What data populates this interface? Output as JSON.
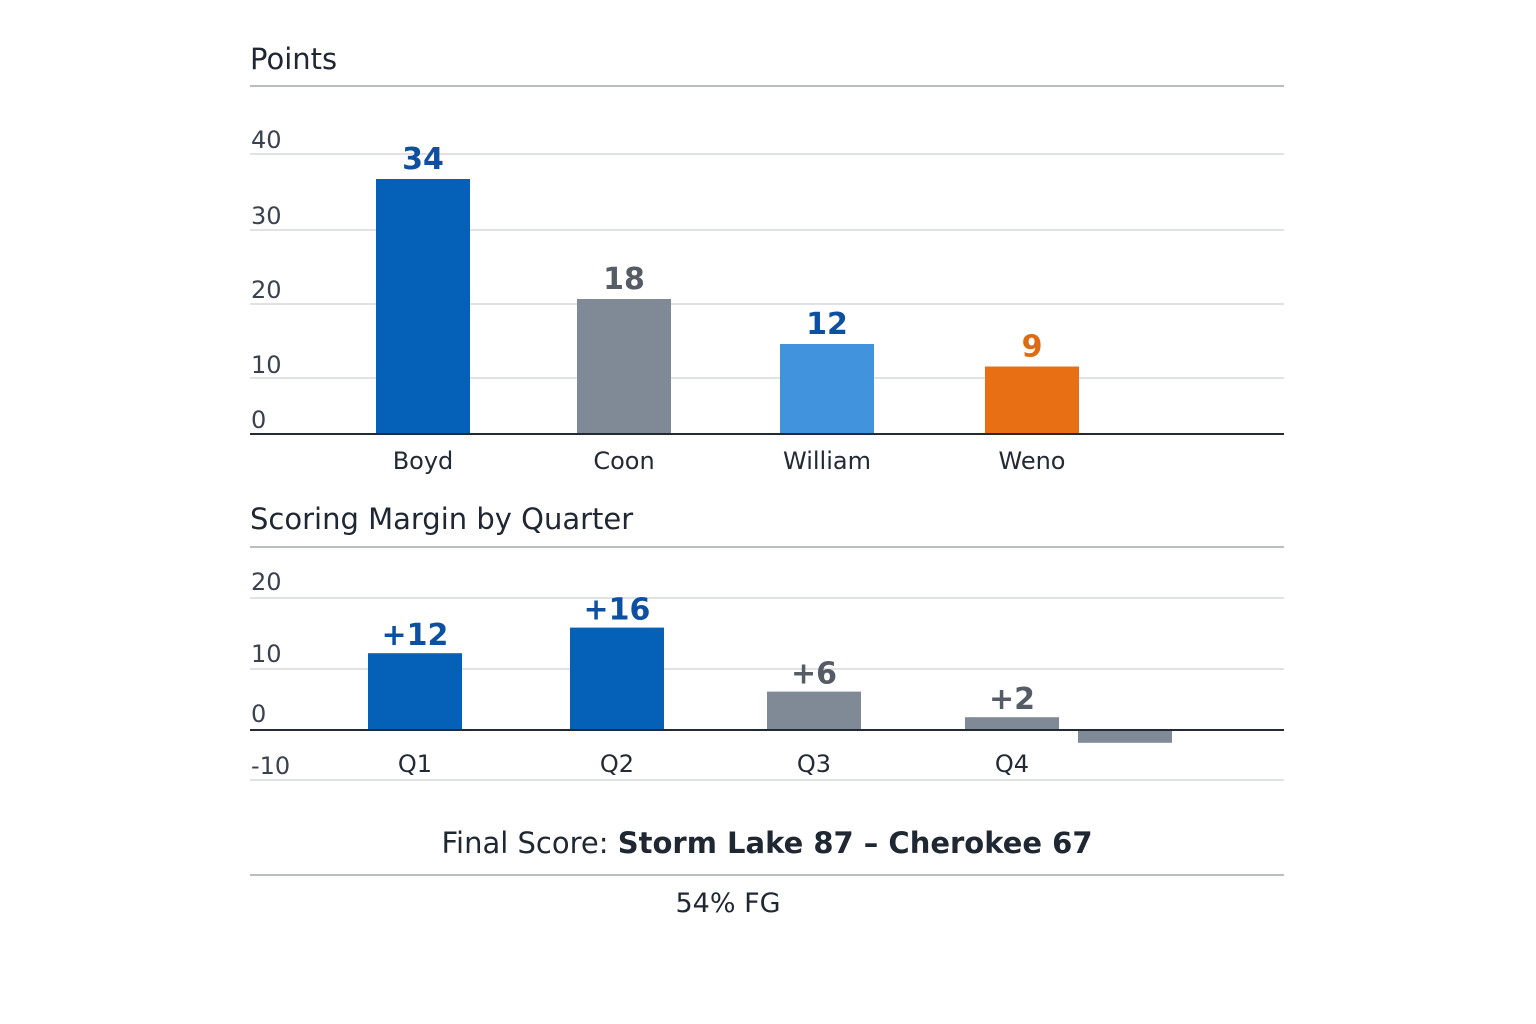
{
  "colors": {
    "blue": "#0560b8",
    "gray": "#808a96",
    "light_blue": "#4193de",
    "orange": "#e86f13",
    "blue_text": "#0d4fa0",
    "gray_text": "#555c66",
    "orange_text": "#e06a10"
  },
  "chart_data": [
    {
      "type": "bar",
      "title": "Points",
      "categories": [
        "Boyd",
        "Coon",
        "William",
        "Weno"
      ],
      "values": [
        34,
        18,
        12,
        9
      ],
      "data_labels": [
        "34",
        "18",
        "12",
        "9"
      ],
      "bar_colors": [
        "blue",
        "gray",
        "light_blue",
        "orange"
      ],
      "label_colors": [
        "blue_text",
        "gray_text",
        "blue_text",
        "orange_text"
      ],
      "yticks": [
        0,
        10,
        20,
        30,
        40
      ],
      "ytick_labels": [
        "0",
        "10",
        "20",
        "30",
        "40"
      ],
      "xlabel": "",
      "ylabel": "",
      "grid": true
    },
    {
      "type": "bar",
      "title": "Scoring Margin by Quarter",
      "categories": [
        "Q1",
        "Q2",
        "Q3",
        "Q4",
        ""
      ],
      "values": [
        12,
        16,
        6,
        2,
        -2
      ],
      "data_labels": [
        "+12",
        "+16",
        "+6",
        "+2",
        ""
      ],
      "bar_colors": [
        "blue",
        "blue",
        "gray",
        "gray",
        "gray"
      ],
      "label_colors": [
        "blue_text",
        "blue_text",
        "gray_text",
        "gray_text",
        "gray_text"
      ],
      "yticks": [
        -10,
        0,
        10,
        20
      ],
      "ytick_labels": [
        "-10",
        "0",
        "10",
        "20"
      ],
      "xlabel": "",
      "ylabel": "",
      "grid": true
    }
  ],
  "summary": {
    "final_prefix": "Final Score:",
    "final_teams": "Storm Lake 87 – Cherokee 67",
    "fg": "54% FG"
  }
}
